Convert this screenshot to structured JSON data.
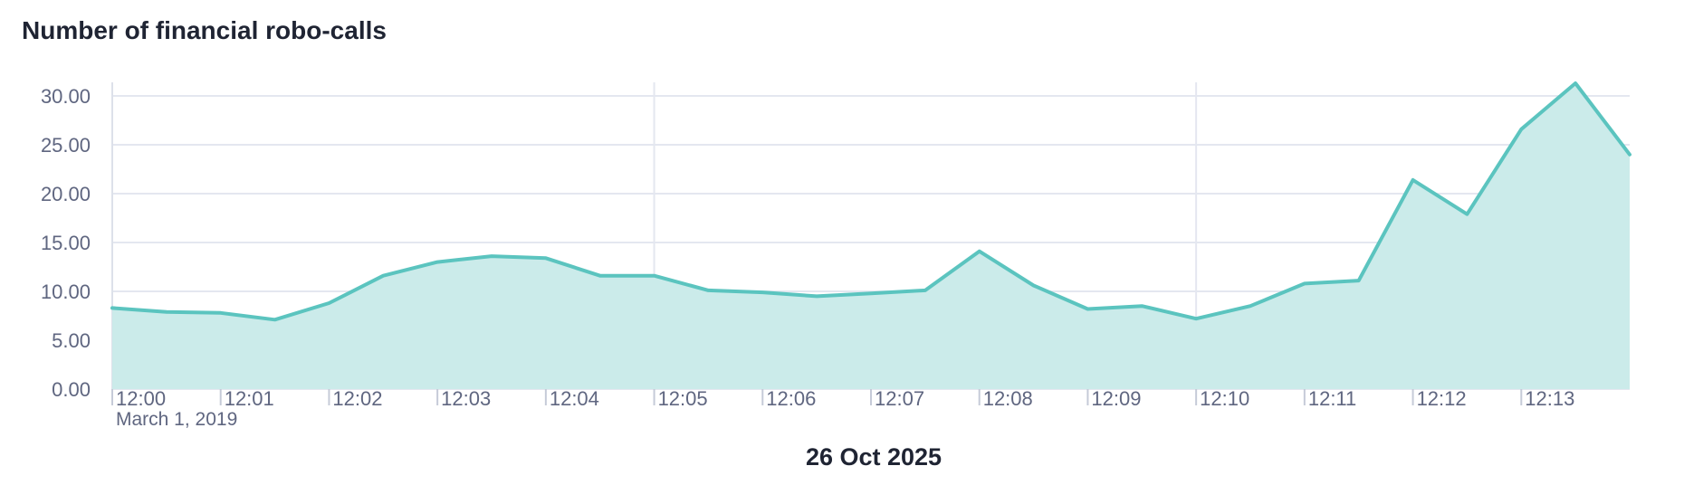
{
  "chart_data": {
    "type": "area",
    "title": "Number of financial robo-calls",
    "xlabel": "26 Oct 2025",
    "ylabel": "",
    "x_start_date_label": "March 1, 2019",
    "ylim": [
      0,
      31.3
    ],
    "y_ticks": [
      "0.00",
      "5.00",
      "10.00",
      "15.00",
      "20.00",
      "25.00",
      "30.00"
    ],
    "y_tick_values": [
      0,
      5,
      10,
      15,
      20,
      25,
      30
    ],
    "x_ticks": [
      "12:00",
      "12:01",
      "12:02",
      "12:03",
      "12:04",
      "12:05",
      "12:06",
      "12:07",
      "12:08",
      "12:09",
      "12:10",
      "12:11",
      "12:12",
      "12:13"
    ],
    "x_range": [
      "12:00",
      "12:14"
    ],
    "x_major_gridlines": [
      "12:05",
      "12:10"
    ],
    "grid": true,
    "legend": "none",
    "series": [
      {
        "x": [
          "12:00:00",
          "12:00:30",
          "12:01:00",
          "12:01:30",
          "12:02:00",
          "12:02:30",
          "12:03:00",
          "12:03:30",
          "12:04:00",
          "12:04:30",
          "12:05:00",
          "12:05:30",
          "12:06:00",
          "12:06:30",
          "12:07:00",
          "12:07:30",
          "12:08:00",
          "12:08:30",
          "12:09:00",
          "12:09:30",
          "12:10:00",
          "12:10:30",
          "12:11:00",
          "12:11:30",
          "12:12:00",
          "12:12:30",
          "12:13:00",
          "12:13:30",
          "12:14:00"
        ],
        "values": [
          8.3,
          7.9,
          7.8,
          7.1,
          8.8,
          11.6,
          13.0,
          13.6,
          13.4,
          11.6,
          11.6,
          10.1,
          9.9,
          9.5,
          9.8,
          10.1,
          14.1,
          10.6,
          8.2,
          8.5,
          7.2,
          8.5,
          10.8,
          11.1,
          21.4,
          17.9,
          26.6,
          31.3,
          24.0
        ],
        "color": "#5bc4bf",
        "fill": "#cbebea"
      }
    ]
  }
}
